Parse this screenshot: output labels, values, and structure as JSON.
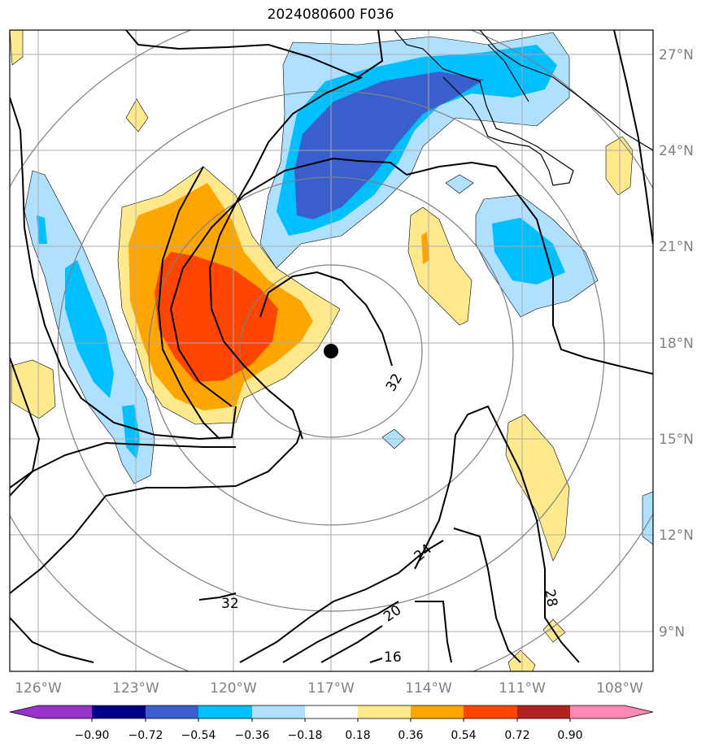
{
  "title": "2024080600 F036",
  "lat_labels": [
    "27°N",
    "24°N",
    "21°N",
    "18°N",
    "15°N",
    "12°N",
    "9°N"
  ],
  "lon_labels": [
    "126°W",
    "123°W",
    "120°W",
    "117°W",
    "114°W",
    "111°W",
    "108°W"
  ],
  "contour_labels": [
    "32",
    "32",
    "24",
    "20",
    "16",
    "28"
  ],
  "colorbar": {
    "tick_labels": [
      "−0.90",
      "−0.72",
      "−0.54",
      "−0.36",
      "−0.18",
      "0.18",
      "0.36",
      "0.54",
      "0.72",
      "0.90"
    ],
    "colors": [
      "#9932cc",
      "#00008b",
      "#3a5fcd",
      "#00bfff",
      "#b0e0ff",
      "#ffffff",
      "#ffe98c",
      "#ffa500",
      "#ff4500",
      "#b22222",
      "#ff88b4"
    ]
  },
  "storm_center_marker": "black-dot",
  "colors": {
    "gridline": "#aaaaaa",
    "range_rings": "#808080",
    "contours": "#000000"
  }
}
